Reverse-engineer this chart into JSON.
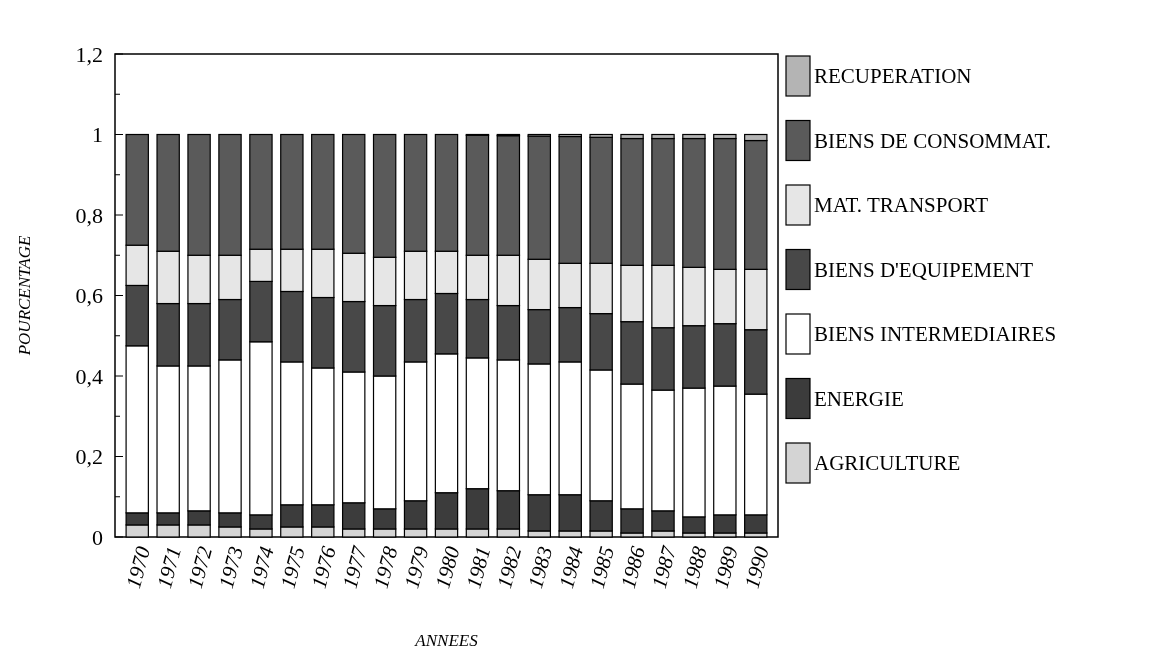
{
  "chart_data": {
    "type": "bar",
    "stacked": true,
    "xlabel": "ANNEES",
    "ylabel": "POURCENTAGE",
    "categories": [
      "1970",
      "1971",
      "1972",
      "1973",
      "1974",
      "1975",
      "1976",
      "1977",
      "1978",
      "1979",
      "1980",
      "1981",
      "1982",
      "1983",
      "1984",
      "1985",
      "1986",
      "1987",
      "1988",
      "1989",
      "1990"
    ],
    "ylim": [
      0,
      1.2
    ],
    "yticks": [
      {
        "value": 0,
        "label": "0"
      },
      {
        "value": 0.1,
        "label": null
      },
      {
        "value": 0.2,
        "label": "0,2"
      },
      {
        "value": 0.3,
        "label": null
      },
      {
        "value": 0.4,
        "label": "0,4"
      },
      {
        "value": 0.5,
        "label": null
      },
      {
        "value": 0.6,
        "label": "0,6"
      },
      {
        "value": 0.7,
        "label": null
      },
      {
        "value": 0.8,
        "label": "0,8"
      },
      {
        "value": 0.9,
        "label": null
      },
      {
        "value": 1,
        "label": "1"
      },
      {
        "value": 1.1,
        "label": null
      },
      {
        "value": 1.2,
        "label": "1,2"
      }
    ],
    "legend": "right",
    "series": [
      {
        "name": "AGRICULTURE",
        "color": "#d4d4d4",
        "values": [
          0.03,
          0.03,
          0.03,
          0.025,
          0.02,
          0.025,
          0.025,
          0.02,
          0.02,
          0.02,
          0.02,
          0.02,
          0.02,
          0.015,
          0.015,
          0.015,
          0.01,
          0.015,
          0.01,
          0.01,
          0.01
        ]
      },
      {
        "name": "ENERGIE",
        "color": "#3c3c3c",
        "values": [
          0.03,
          0.03,
          0.035,
          0.035,
          0.035,
          0.055,
          0.055,
          0.065,
          0.05,
          0.07,
          0.09,
          0.1,
          0.095,
          0.09,
          0.09,
          0.075,
          0.06,
          0.05,
          0.04,
          0.045,
          0.045
        ]
      },
      {
        "name": "BIENS INTERMEDIAIRES",
        "color": "#ffffff",
        "values": [
          0.415,
          0.365,
          0.36,
          0.38,
          0.43,
          0.355,
          0.34,
          0.325,
          0.33,
          0.345,
          0.345,
          0.325,
          0.325,
          0.325,
          0.33,
          0.325,
          0.31,
          0.3,
          0.32,
          0.32,
          0.3
        ]
      },
      {
        "name": "BIENS D'EQUIPEMENT",
        "color": "#484848",
        "values": [
          0.15,
          0.155,
          0.155,
          0.15,
          0.15,
          0.175,
          0.175,
          0.175,
          0.175,
          0.155,
          0.15,
          0.145,
          0.135,
          0.135,
          0.135,
          0.14,
          0.155,
          0.155,
          0.155,
          0.155,
          0.16
        ]
      },
      {
        "name": "MAT. TRANSPORT",
        "color": "#e6e6e6",
        "values": [
          0.1,
          0.13,
          0.12,
          0.11,
          0.08,
          0.105,
          0.12,
          0.12,
          0.12,
          0.12,
          0.105,
          0.11,
          0.125,
          0.125,
          0.11,
          0.125,
          0.14,
          0.155,
          0.145,
          0.135,
          0.15
        ]
      },
      {
        "name": "BIENS DE CONSOMMAT.",
        "color": "#5a5a5a",
        "values": [
          0.275,
          0.29,
          0.3,
          0.3,
          0.285,
          0.285,
          0.285,
          0.295,
          0.305,
          0.29,
          0.29,
          0.298,
          0.297,
          0.306,
          0.315,
          0.313,
          0.315,
          0.315,
          0.32,
          0.325,
          0.32
        ]
      },
      {
        "name": "RECUPERATION",
        "color": "#b4b4b4",
        "values": [
          0,
          0,
          0,
          0,
          0,
          0,
          0,
          0,
          0,
          0,
          0,
          0.002,
          0.003,
          0.004,
          0.005,
          0.007,
          0.01,
          0.01,
          0.01,
          0.01,
          0.015
        ]
      }
    ]
  }
}
